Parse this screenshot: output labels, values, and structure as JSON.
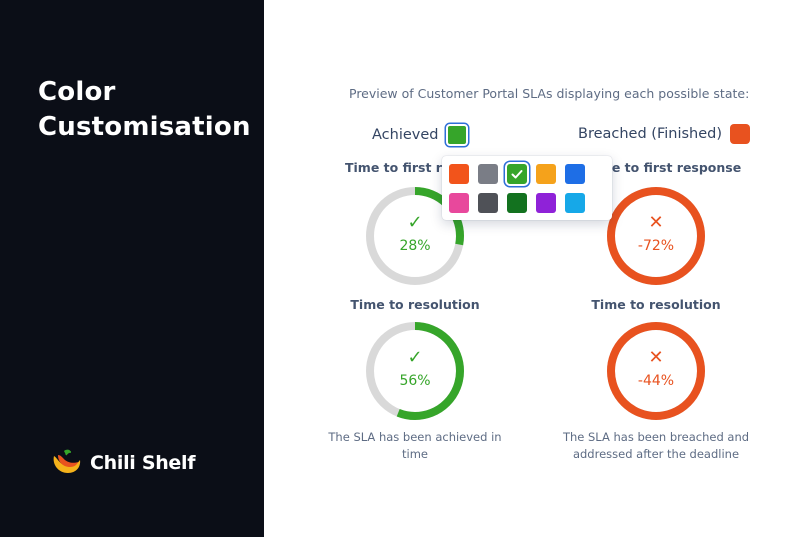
{
  "slide": {
    "title_line1": "Color",
    "title_line2": "Customisation"
  },
  "brand": {
    "name": "Chili Shelf"
  },
  "preview": {
    "caption": "Preview of Customer Portal SLAs displaying each possible state:"
  },
  "states": {
    "achieved": {
      "label": "Achieved",
      "color": "#36a52a",
      "first_response": {
        "label": "Time to first response",
        "percent_text": "28%",
        "value": 0.28
      },
      "resolution": {
        "label": "Time to resolution",
        "percent_text": "56%",
        "value": 0.56
      },
      "footnote": "The SLA has been achieved in time"
    },
    "breached": {
      "label": "Breached (Finished)",
      "color": "#e8521f",
      "first_response": {
        "label": "Time to first response",
        "percent_text": "-72%",
        "value": 1.0
      },
      "resolution": {
        "label": "Time to resolution",
        "percent_text": "-44%",
        "value": 1.0
      },
      "footnote_line1": "The SLA has been breached and",
      "footnote_line2": "addressed after the deadline"
    }
  },
  "color_picker": {
    "selected": "#36a52a",
    "row1": [
      "#f2541b",
      "#7a7d86",
      "#36a52a",
      "#f5a21b",
      "#1e6ee6"
    ],
    "row2": [
      "#e8489c",
      "#4f5157",
      "#13721f",
      "#8f22d8",
      "#16a8e8"
    ]
  },
  "icons": {
    "check": "check-icon",
    "cross": "cross-icon",
    "logo": "chili-logo-icon"
  }
}
